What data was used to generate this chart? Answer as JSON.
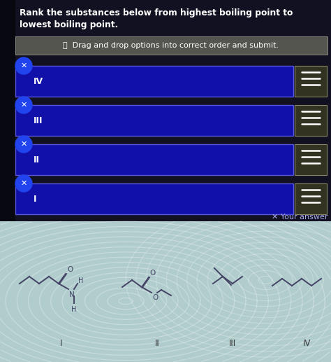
{
  "title_line1": "Rank the substances below from highest boiling point to",
  "title_line2": "lowest boiling point.",
  "instruction": "ⓘ  Drag and drop options into correct order and submit.",
  "rows": [
    "IV",
    "III",
    "II",
    "I"
  ],
  "your_answer_label": "✕ Your answer",
  "bg_color": "#111122",
  "title_text_color": "#ffffff",
  "row_bg": "#1111aa",
  "row_border": "#5555dd",
  "row_text_color": "#ffffff",
  "x_button_color": "#2244ee",
  "x_text_color": "#ffffff",
  "hamburger_bg": "#333322",
  "hamburger_border": "#888866",
  "bottom_bg_color_1": "#c8ddd8",
  "bottom_bg_color_2": "#a8ccb8",
  "bottom_label_color": "#333333",
  "instruction_bg": "#555550",
  "instruction_border": "#888880",
  "mol_color": "#444466",
  "figure_width": 4.74,
  "figure_height": 5.17,
  "dpi": 100
}
